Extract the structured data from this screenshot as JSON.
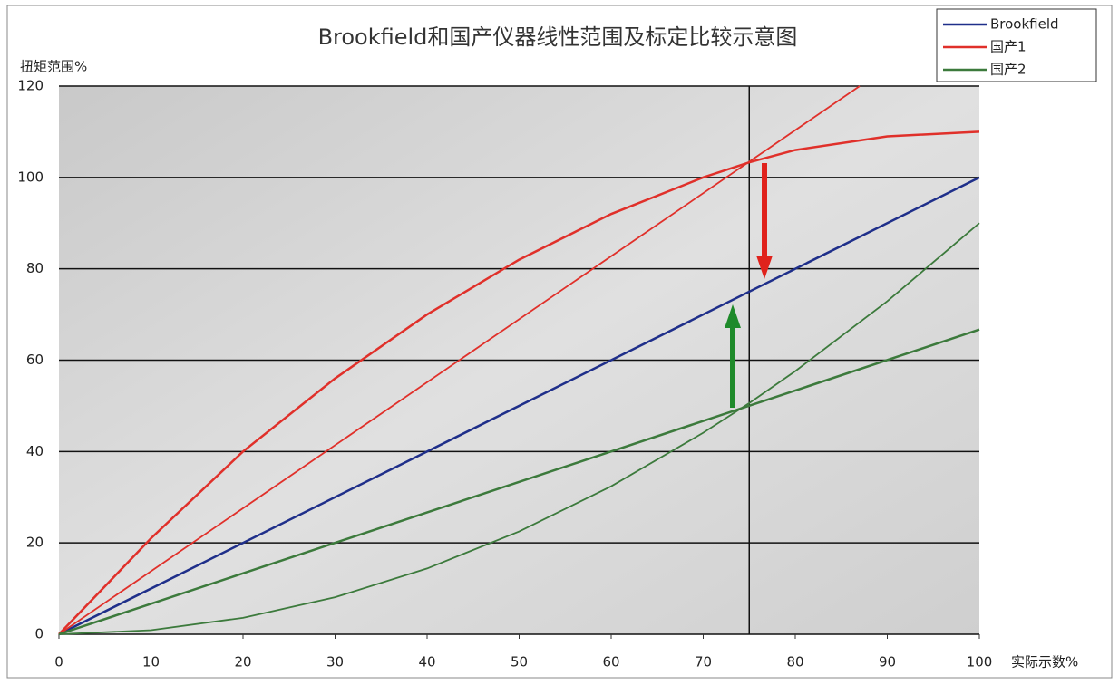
{
  "chart_data": {
    "type": "line",
    "title": "Brookfield和国产仪器线性范围及标定比较示意图",
    "y_label": "扭矩范围%",
    "x_label": "实际示数%",
    "xlim": [
      0,
      100
    ],
    "xticks": [
      0,
      10,
      20,
      30,
      40,
      50,
      60,
      70,
      80,
      90,
      100
    ],
    "ylim": [
      0,
      120
    ],
    "yticks": [
      0,
      20,
      40,
      60,
      80,
      100,
      120
    ],
    "grid": true,
    "reference_x": 75,
    "legend": "top-right",
    "series": [
      {
        "name": "Brookfield",
        "color": "#1f2f8a",
        "lines": [
          {
            "x": [
              0,
              100
            ],
            "values": [
              0,
              100
            ]
          }
        ]
      },
      {
        "name": "国产1",
        "color": "#e0302a",
        "lines": [
          {
            "x": [
              0,
              10,
              20,
              30,
              40,
              50,
              60,
              70,
              75,
              80,
              90,
              100
            ],
            "values": [
              0,
              21,
              40,
              56,
              70,
              82,
              92,
              100,
              103.3,
              106,
              109,
              110
            ]
          },
          {
            "x": [
              0,
              87
            ],
            "values": [
              0,
              120
            ]
          }
        ]
      },
      {
        "name": "国产2",
        "color": "#3c7a3c",
        "lines": [
          {
            "x": [
              0,
              100
            ],
            "values": [
              0,
              66.7
            ]
          },
          {
            "x": [
              0,
              10,
              20,
              30,
              40,
              50,
              60,
              70,
              75,
              80,
              90,
              100
            ],
            "values": [
              0,
              0.9,
              3.6,
              8.1,
              14.4,
              22.5,
              32.4,
              44.1,
              50.6,
              57.6,
              72.9,
              90
            ]
          }
        ]
      }
    ]
  }
}
